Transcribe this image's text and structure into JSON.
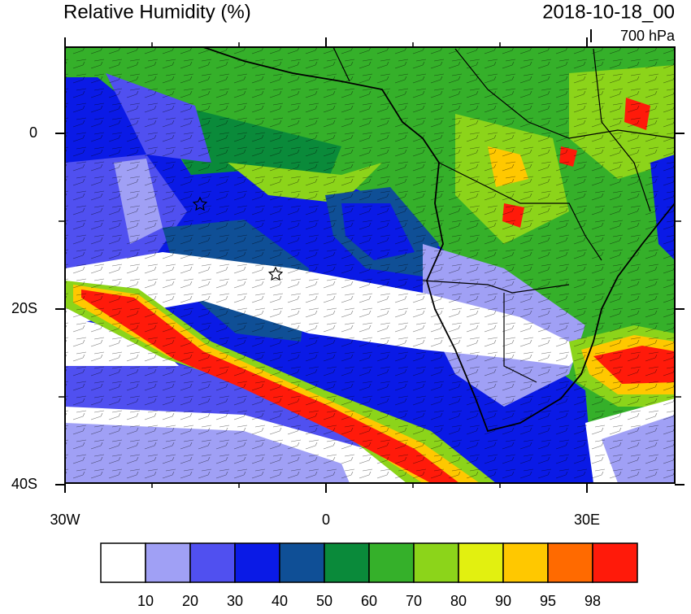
{
  "header": {
    "title": "Relative Humidity (%)",
    "timestamp": "2018-10-18_00",
    "level": "700 hPa"
  },
  "map": {
    "lat_ticks": [
      0,
      {
        "value": -20,
        "label": "20S"
      },
      {
        "value": -40,
        "label": "40S"
      }
    ],
    "lon_ticks": [
      {
        "value": -30,
        "label": "30W"
      },
      0,
      {
        "value": 30,
        "label": "30E"
      }
    ]
  },
  "colorbar": {
    "levels": [
      10,
      20,
      30,
      40,
      50,
      60,
      70,
      80,
      90,
      95,
      98
    ],
    "colors": [
      "#ffffff",
      "#a0a0f5",
      "#5050f0",
      "#0a1ae6",
      "#0f4f96",
      "#0a8a3a",
      "#35b02a",
      "#8cd41a",
      "#e2f010",
      "#ffc800",
      "#ff6a00",
      "#ff1a0a"
    ]
  }
}
